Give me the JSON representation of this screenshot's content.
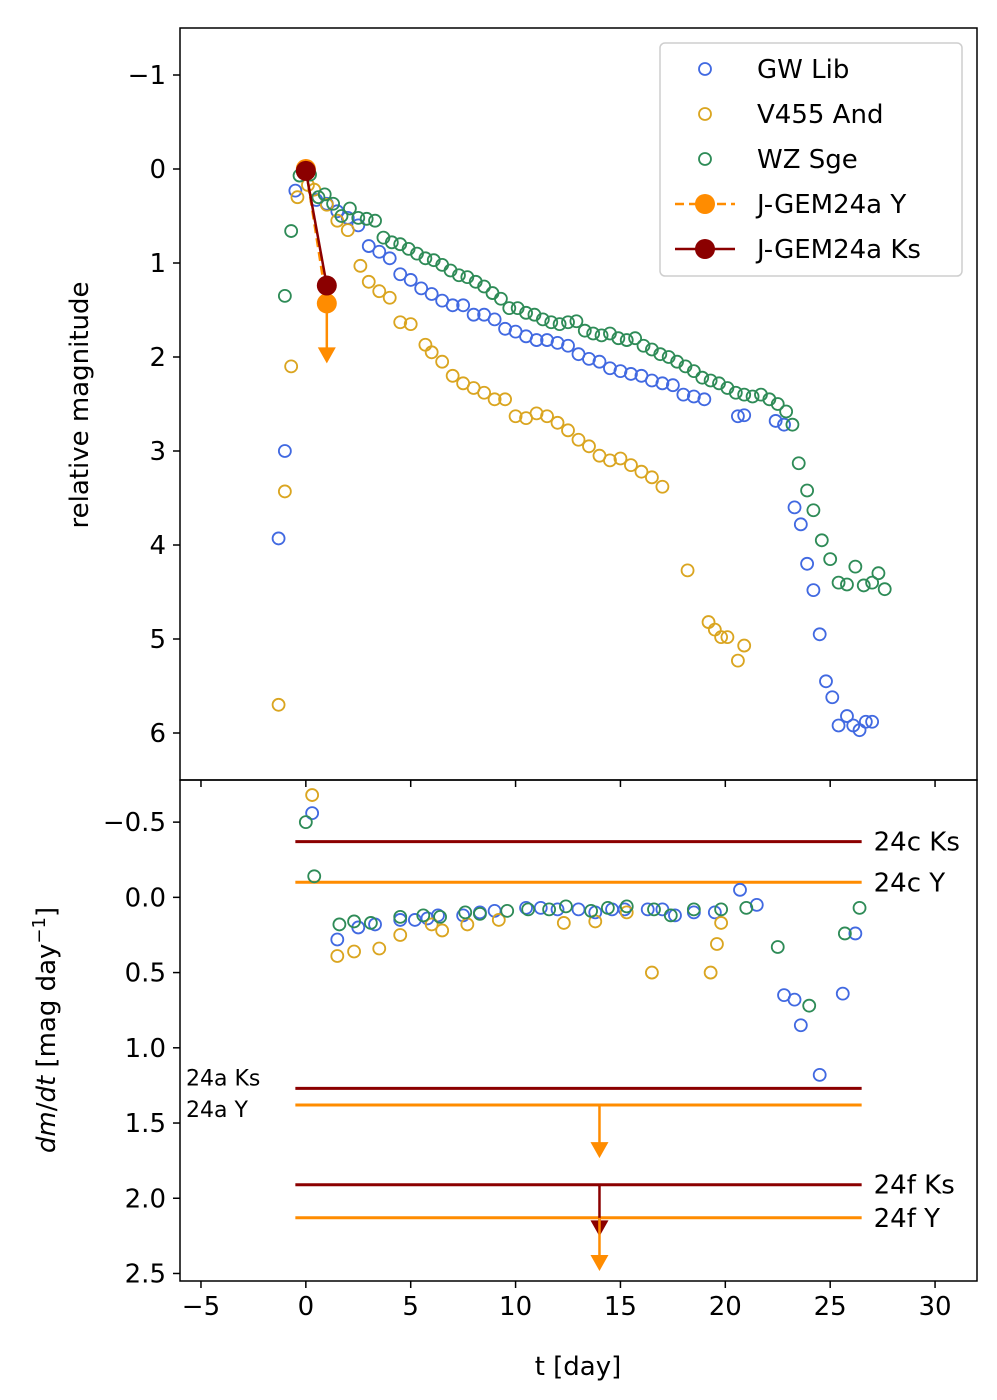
{
  "colors": {
    "gw": "#4169e1",
    "v455": "#daa520",
    "wz": "#2e8b57",
    "y": "#ff8c00",
    "ks": "#8b0000"
  },
  "chart_data": [
    {
      "type": "scatter",
      "panel": "top",
      "ylabel": "relative magnitude",
      "xlim": [
        -6,
        32
      ],
      "ylim": [
        6.5,
        -1.5
      ],
      "y_inverted": true,
      "yticks": [
        -1,
        0,
        1,
        2,
        3,
        4,
        5,
        6
      ],
      "ytick_labels": [
        "−1",
        "0",
        "1",
        "2",
        "3",
        "4",
        "5",
        "6"
      ],
      "legend": {
        "position": "top-right",
        "entries": [
          "GW Lib",
          "V455 And",
          "WZ Sge",
          "J-GEM24a Y",
          "J-GEM24a Ks"
        ]
      },
      "series": [
        {
          "name": "GW Lib",
          "color_key": "gw",
          "marker": "open-circle",
          "x": [
            -1.3,
            -1.0,
            -0.5,
            0.0,
            0.5,
            1.0,
            1.5,
            2.0,
            2.5,
            3.0,
            3.5,
            4.0,
            4.5,
            5.0,
            5.5,
            6.0,
            6.5,
            7.0,
            7.5,
            8.0,
            8.5,
            9.0,
            9.5,
            10.0,
            10.5,
            11.0,
            11.5,
            12.0,
            12.5,
            13.0,
            13.5,
            14.0,
            14.5,
            15.0,
            15.5,
            16.0,
            16.5,
            17.0,
            17.5,
            18.0,
            18.5,
            19.0,
            20.6,
            20.9,
            22.4,
            22.8,
            23.3,
            23.6,
            23.9,
            24.2,
            24.5,
            24.8,
            25.1,
            25.4,
            25.8,
            26.1,
            26.4,
            26.7,
            27.0
          ],
          "y": [
            3.93,
            3.0,
            0.23,
            0.05,
            0.33,
            0.37,
            0.45,
            0.52,
            0.6,
            0.82,
            0.88,
            0.95,
            1.12,
            1.18,
            1.27,
            1.33,
            1.4,
            1.45,
            1.45,
            1.55,
            1.55,
            1.6,
            1.7,
            1.73,
            1.78,
            1.82,
            1.82,
            1.85,
            1.88,
            1.97,
            2.02,
            2.05,
            2.12,
            2.15,
            2.18,
            2.2,
            2.25,
            2.28,
            2.3,
            2.4,
            2.42,
            2.45,
            2.63,
            2.62,
            2.68,
            2.72,
            3.6,
            3.78,
            4.2,
            4.48,
            4.95,
            5.45,
            5.62,
            5.92,
            5.82,
            5.92,
            5.97,
            5.88,
            5.88
          ]
        },
        {
          "name": "V455 And",
          "color_key": "v455",
          "marker": "open-circle",
          "x": [
            -1.3,
            -1.0,
            -0.7,
            -0.4,
            0.1,
            0.4,
            1.0,
            1.5,
            2.0,
            2.6,
            3.0,
            3.5,
            4.0,
            4.5,
            5.0,
            5.7,
            6.0,
            6.5,
            7.0,
            7.5,
            8.0,
            8.5,
            9.0,
            9.5,
            10.0,
            10.5,
            11.0,
            11.5,
            12.0,
            12.5,
            13.0,
            13.5,
            14.0,
            14.5,
            15.0,
            15.5,
            16.0,
            16.5,
            17.0,
            18.2,
            19.2,
            19.5,
            19.8,
            20.1,
            20.6,
            20.9
          ],
          "y": [
            5.7,
            3.43,
            2.1,
            0.3,
            0.17,
            0.22,
            0.38,
            0.55,
            0.65,
            1.03,
            1.2,
            1.3,
            1.37,
            1.63,
            1.65,
            1.87,
            1.95,
            2.05,
            2.2,
            2.28,
            2.33,
            2.38,
            2.45,
            2.45,
            2.63,
            2.65,
            2.6,
            2.63,
            2.7,
            2.78,
            2.88,
            2.95,
            3.05,
            3.1,
            3.08,
            3.15,
            3.22,
            3.28,
            3.38,
            4.27,
            4.82,
            4.9,
            4.98,
            4.98,
            5.23,
            5.07
          ]
        },
        {
          "name": "WZ Sge",
          "color_key": "wz",
          "marker": "open-circle",
          "x": [
            -1.0,
            -0.7,
            -0.3,
            0.2,
            0.6,
            0.9,
            1.3,
            1.7,
            2.1,
            2.5,
            2.9,
            3.3,
            3.7,
            4.1,
            4.5,
            4.9,
            5.3,
            5.7,
            6.1,
            6.5,
            6.9,
            7.3,
            7.7,
            8.1,
            8.5,
            8.9,
            9.3,
            9.7,
            10.1,
            10.5,
            10.9,
            11.3,
            11.7,
            12.1,
            12.5,
            12.9,
            13.3,
            13.7,
            14.1,
            14.5,
            14.9,
            15.3,
            15.7,
            16.1,
            16.5,
            16.9,
            17.3,
            17.7,
            18.1,
            18.5,
            18.9,
            19.3,
            19.7,
            20.1,
            20.5,
            20.9,
            21.3,
            21.7,
            22.1,
            22.5,
            22.9,
            23.2,
            23.5,
            23.9,
            24.2,
            24.6,
            25.0,
            25.4,
            25.8,
            26.2,
            26.6,
            27.0,
            27.3,
            27.6
          ],
          "y": [
            1.35,
            0.66,
            0.07,
            0.06,
            0.3,
            0.27,
            0.37,
            0.5,
            0.42,
            0.52,
            0.53,
            0.55,
            0.73,
            0.78,
            0.8,
            0.85,
            0.9,
            0.95,
            0.97,
            1.02,
            1.08,
            1.13,
            1.15,
            1.2,
            1.25,
            1.32,
            1.38,
            1.48,
            1.48,
            1.53,
            1.55,
            1.6,
            1.63,
            1.65,
            1.63,
            1.62,
            1.72,
            1.75,
            1.77,
            1.75,
            1.8,
            1.82,
            1.8,
            1.88,
            1.92,
            1.97,
            2.0,
            2.05,
            2.1,
            2.15,
            2.22,
            2.25,
            2.28,
            2.33,
            2.38,
            2.4,
            2.42,
            2.4,
            2.45,
            2.5,
            2.58,
            2.72,
            3.13,
            3.42,
            3.63,
            3.95,
            4.15,
            4.4,
            4.42,
            4.23,
            4.43,
            4.4,
            4.3,
            4.47
          ]
        },
        {
          "name": "J-GEM24a Y",
          "color_key": "y",
          "marker": "filled-circle",
          "linestyle": "dashed",
          "x": [
            0.0,
            1.0
          ],
          "y": [
            0.0,
            1.43
          ],
          "upper_limit_at": 1.0
        },
        {
          "name": "J-GEM24a Ks",
          "color_key": "ks",
          "marker": "filled-circle",
          "linestyle": "solid",
          "x": [
            0.0,
            1.0
          ],
          "y": [
            0.02,
            1.24
          ]
        }
      ]
    },
    {
      "type": "scatter",
      "panel": "bottom",
      "xlabel": "t [day]",
      "ylabel_prefix": "dm/dt [mag day",
      "ylabel_sup": "−1",
      "ylabel_suffix": "]",
      "xlim": [
        -6,
        32
      ],
      "ylim": [
        2.55,
        -0.78
      ],
      "y_inverted": true,
      "xticks": [
        -5,
        0,
        5,
        10,
        15,
        20,
        25,
        30
      ],
      "xtick_labels": [
        "−5",
        "0",
        "5",
        "10",
        "15",
        "20",
        "25",
        "30"
      ],
      "yticks": [
        -0.5,
        0.0,
        0.5,
        1.0,
        1.5,
        2.0,
        2.5
      ],
      "ytick_labels": [
        "−0.5",
        "0.0",
        "0.5",
        "1.0",
        "1.5",
        "2.0",
        "2.5"
      ],
      "series": [
        {
          "name": "GW Lib",
          "color_key": "gw",
          "marker": "open-circle",
          "x": [
            0.3,
            1.5,
            2.5,
            3.3,
            4.5,
            5.2,
            5.8,
            6.3,
            7.5,
            8.3,
            9.0,
            10.5,
            11.2,
            12.0,
            13.0,
            13.8,
            14.6,
            15.2,
            16.3,
            17.0,
            17.6,
            18.5,
            19.5,
            20.7,
            21.5,
            22.8,
            23.3,
            23.6,
            24.5,
            25.6,
            26.2
          ],
          "y": [
            -0.56,
            0.28,
            0.2,
            0.18,
            0.15,
            0.15,
            0.14,
            0.12,
            0.12,
            0.1,
            0.09,
            0.07,
            0.07,
            0.08,
            0.08,
            0.1,
            0.08,
            0.08,
            0.08,
            0.08,
            0.12,
            0.1,
            0.1,
            -0.05,
            0.05,
            0.65,
            0.68,
            0.85,
            1.18,
            0.64,
            0.24
          ]
        },
        {
          "name": "V455 And",
          "color_key": "v455",
          "marker": "open-circle",
          "x": [
            0.3,
            1.5,
            2.3,
            3.5,
            4.5,
            6.0,
            6.5,
            7.7,
            9.2,
            12.3,
            13.8,
            15.3,
            16.5,
            19.3,
            19.6,
            19.8
          ],
          "y": [
            -0.68,
            0.39,
            0.36,
            0.34,
            0.25,
            0.18,
            0.22,
            0.18,
            0.15,
            0.17,
            0.16,
            0.1,
            0.5,
            0.5,
            0.31,
            0.17
          ]
        },
        {
          "name": "WZ Sge",
          "color_key": "wz",
          "marker": "open-circle",
          "x": [
            0.0,
            0.4,
            1.6,
            2.3,
            3.1,
            4.5,
            5.6,
            6.4,
            7.6,
            8.3,
            9.6,
            10.6,
            11.6,
            12.4,
            13.6,
            14.4,
            15.3,
            16.6,
            17.4,
            18.5,
            19.8,
            21.0,
            22.5,
            24.0,
            25.7,
            26.4
          ],
          "y": [
            -0.5,
            -0.14,
            0.18,
            0.16,
            0.17,
            0.13,
            0.12,
            0.13,
            0.1,
            0.11,
            0.09,
            0.08,
            0.08,
            0.06,
            0.09,
            0.07,
            0.06,
            0.08,
            0.12,
            0.08,
            0.08,
            0.07,
            0.33,
            0.72,
            0.24,
            0.07
          ]
        }
      ],
      "hlines": [
        {
          "label": "24c Ks",
          "color_key": "ks",
          "y": -0.37,
          "x_range": [
            -0.5,
            26.5
          ],
          "label_side": "right"
        },
        {
          "label": "24c Y",
          "color_key": "y",
          "y": -0.1,
          "x_range": [
            -0.5,
            26.5
          ],
          "label_side": "right"
        },
        {
          "label": "24a Ks",
          "color_key": "ks",
          "y": 1.27,
          "x_range": [
            -0.5,
            26.5
          ],
          "label_side": "left"
        },
        {
          "label": "24a Y",
          "color_key": "y",
          "y": 1.38,
          "x_range": [
            -0.5,
            26.5
          ],
          "label_side": "left",
          "arrow_at": 14,
          "arrow_to": 1.72
        },
        {
          "label": "24f Ks",
          "color_key": "ks",
          "y": 1.91,
          "x_range": [
            -0.5,
            26.5
          ],
          "label_side": "right",
          "arrow_at": 14,
          "arrow_to": 2.24
        },
        {
          "label": "24f Y",
          "color_key": "y",
          "y": 2.13,
          "x_range": [
            -0.5,
            26.5
          ],
          "label_side": "right",
          "arrow_at": 14,
          "arrow_to": 2.47
        }
      ]
    }
  ]
}
